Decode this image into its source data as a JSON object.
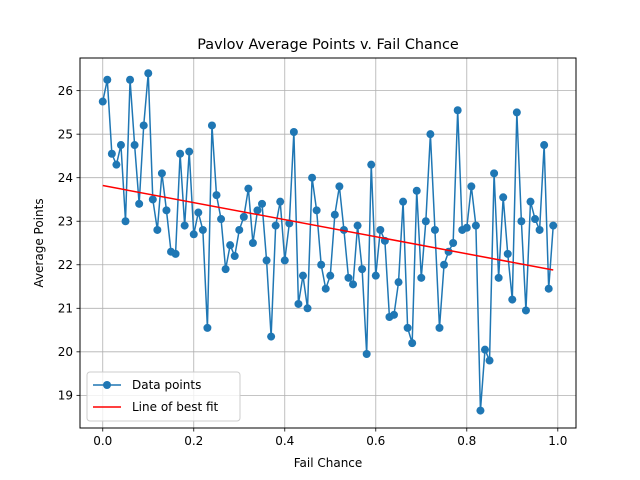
{
  "chart_data": {
    "type": "line",
    "title": "Pavlov Average Points v. Fail Chance",
    "xlabel": "Fail Chance",
    "ylabel": "Average Points",
    "xlim": [
      -0.05,
      1.04
    ],
    "ylim": [
      18.25,
      26.75
    ],
    "xticks": [
      0.0,
      0.2,
      0.4,
      0.6,
      0.8,
      1.0
    ],
    "xtick_labels": [
      "0.0",
      "0.2",
      "0.4",
      "0.6",
      "0.8",
      "1.0"
    ],
    "yticks": [
      19,
      20,
      21,
      22,
      23,
      24,
      25,
      26
    ],
    "ytick_labels": [
      "19",
      "20",
      "21",
      "22",
      "23",
      "24",
      "25",
      "26"
    ],
    "grid": true,
    "legend": {
      "position": "lower-left",
      "entries": [
        "Data points",
        "Line of best fit"
      ]
    },
    "series": [
      {
        "name": "Data points",
        "color": "#1f77b4",
        "marker": "circle",
        "x": [
          0.0,
          0.01,
          0.02,
          0.03,
          0.04,
          0.05,
          0.06,
          0.07,
          0.08,
          0.09,
          0.1,
          0.11,
          0.12,
          0.13,
          0.14,
          0.15,
          0.16,
          0.17,
          0.18,
          0.19,
          0.2,
          0.21,
          0.22,
          0.23,
          0.24,
          0.25,
          0.26,
          0.27,
          0.28,
          0.29,
          0.3,
          0.31,
          0.32,
          0.33,
          0.34,
          0.35,
          0.36,
          0.37,
          0.38,
          0.39,
          0.4,
          0.41,
          0.42,
          0.43,
          0.44,
          0.45,
          0.46,
          0.47,
          0.48,
          0.49,
          0.5,
          0.51,
          0.52,
          0.53,
          0.54,
          0.55,
          0.56,
          0.57,
          0.58,
          0.59,
          0.6,
          0.61,
          0.62,
          0.63,
          0.64,
          0.65,
          0.66,
          0.67,
          0.68,
          0.69,
          0.7,
          0.71,
          0.72,
          0.73,
          0.74,
          0.75,
          0.76,
          0.77,
          0.78,
          0.79,
          0.8,
          0.81,
          0.82,
          0.83,
          0.84,
          0.85,
          0.86,
          0.87,
          0.88,
          0.89,
          0.9,
          0.91,
          0.92,
          0.93,
          0.94,
          0.95,
          0.96,
          0.97,
          0.98,
          0.99
        ],
        "y": [
          25.75,
          26.25,
          24.55,
          24.3,
          24.75,
          23.0,
          26.25,
          24.75,
          23.4,
          25.2,
          26.4,
          23.5,
          22.8,
          24.1,
          23.25,
          22.3,
          22.25,
          24.55,
          22.9,
          24.6,
          22.7,
          23.2,
          22.8,
          20.55,
          25.2,
          23.6,
          23.05,
          21.9,
          22.45,
          22.2,
          22.8,
          23.1,
          23.75,
          22.5,
          23.25,
          23.4,
          22.1,
          20.35,
          22.9,
          23.45,
          22.1,
          22.95,
          25.05,
          21.1,
          21.75,
          21.0,
          24.0,
          23.25,
          22.0,
          21.45,
          21.75,
          23.15,
          23.8,
          22.8,
          21.7,
          21.55,
          22.9,
          21.9,
          19.95,
          24.3,
          21.75,
          22.8,
          22.55,
          20.8,
          20.85,
          21.6,
          23.45,
          20.55,
          20.2,
          23.7,
          21.7,
          23.0,
          25.0,
          22.8,
          20.55,
          22.0,
          22.3,
          22.5,
          25.55,
          22.8,
          22.85,
          23.8,
          22.9,
          18.65,
          20.05,
          19.8,
          24.1,
          21.7,
          23.55,
          22.25,
          21.2,
          25.5,
          23.0,
          20.95,
          23.45,
          23.05,
          22.8,
          24.75,
          21.45,
          22.9
        ]
      },
      {
        "name": "Line of best fit",
        "color": "#ff0000",
        "x": [
          0.0,
          0.99
        ],
        "y": [
          23.82,
          21.88
        ]
      }
    ]
  }
}
